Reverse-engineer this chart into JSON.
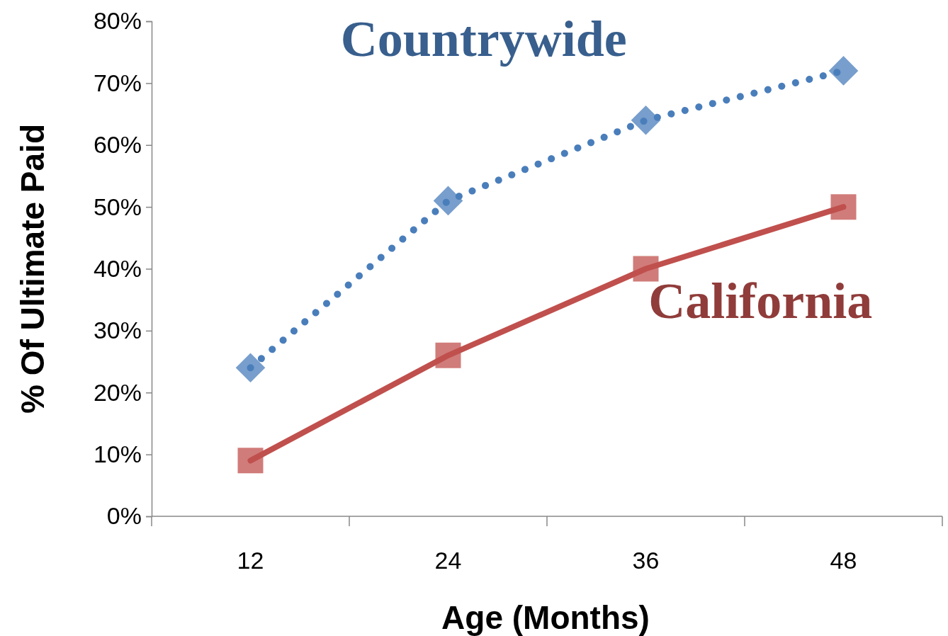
{
  "chart_data": {
    "type": "line",
    "xlabel": "Age (Months)",
    "ylabel": "% Of Ultimate Paid",
    "categories": [
      "12",
      "24",
      "36",
      "48"
    ],
    "ylim": [
      0,
      80
    ],
    "yticks": [
      {
        "value": 0,
        "label": "0%"
      },
      {
        "value": 10,
        "label": "10%"
      },
      {
        "value": 20,
        "label": "20%"
      },
      {
        "value": 30,
        "label": "30%"
      },
      {
        "value": 40,
        "label": "40%"
      },
      {
        "value": 50,
        "label": "50%"
      },
      {
        "value": 60,
        "label": "60%"
      },
      {
        "value": 70,
        "label": "70%"
      },
      {
        "value": 80,
        "label": "80%"
      }
    ],
    "grid": false,
    "legend": false,
    "series": [
      {
        "name": "Countrywide",
        "color": "#4a7ebb",
        "values": [
          24,
          51,
          64,
          72
        ],
        "marker": "diamond",
        "line_style": "dotted"
      },
      {
        "name": "California",
        "color": "#c0504d",
        "values": [
          9,
          26,
          40,
          50
        ],
        "marker": "square",
        "line_style": "solid"
      }
    ]
  }
}
